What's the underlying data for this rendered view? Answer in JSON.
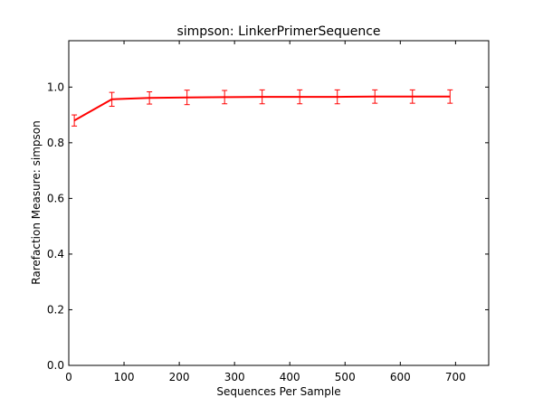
{
  "chart_data": {
    "type": "line",
    "title": "simpson: LinkerPrimerSequence",
    "xlabel": "Sequences Per Sample",
    "ylabel": "Rarefaction Measure: simpson",
    "xlim": [
      0,
      760
    ],
    "ylim": [
      0,
      1.1667
    ],
    "xticks": [
      0,
      100,
      200,
      300,
      400,
      500,
      600,
      700
    ],
    "xtick_labels": [
      "0",
      "100",
      "200",
      "300",
      "400",
      "500",
      "600",
      "700"
    ],
    "yticks": [
      0.0,
      0.2,
      0.4,
      0.6,
      0.8,
      1.0
    ],
    "ytick_labels": [
      "0.0",
      "0.2",
      "0.4",
      "0.6",
      "0.8",
      "1.0"
    ],
    "grid": false,
    "color": "#ff0000",
    "series": [
      {
        "x": [
          10,
          78,
          146,
          214,
          282,
          350,
          418,
          486,
          554,
          622,
          690
        ],
        "y": [
          0.88,
          0.956,
          0.961,
          0.963,
          0.964,
          0.965,
          0.965,
          0.965,
          0.966,
          0.966,
          0.966
        ],
        "err": [
          0.02,
          0.025,
          0.022,
          0.026,
          0.024,
          0.025,
          0.025,
          0.025,
          0.024,
          0.024,
          0.024
        ]
      }
    ]
  }
}
